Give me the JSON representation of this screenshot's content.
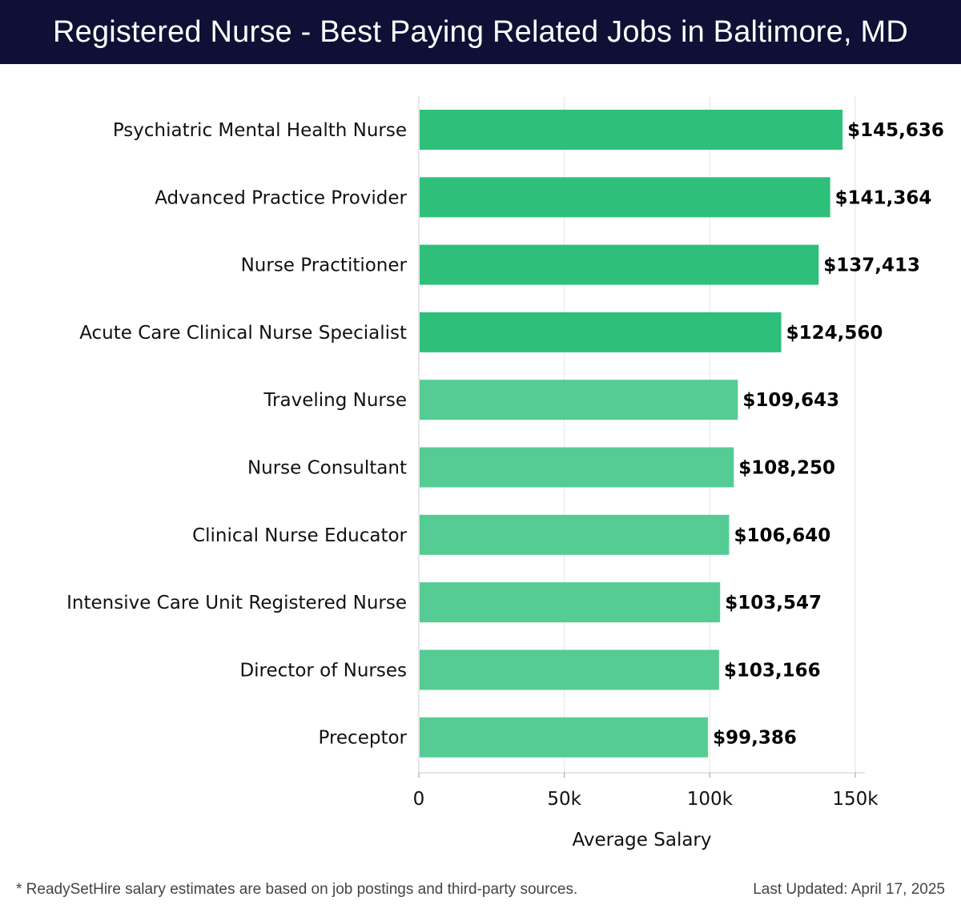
{
  "header": {
    "title": "Registered Nurse - Best Paying Related Jobs in Baltimore, MD"
  },
  "chart_data": {
    "type": "bar",
    "orientation": "horizontal",
    "title": "Registered Nurse - Best Paying Related Jobs in Baltimore, MD",
    "xlabel": "Average Salary",
    "ylabel": "",
    "xlim": [
      0,
      150000
    ],
    "xticks": [
      0,
      50000,
      100000,
      150000
    ],
    "xtick_labels": [
      "0",
      "50k",
      "100k",
      "150k"
    ],
    "grid": true,
    "categories": [
      "Psychiatric Mental Health Nurse",
      "Advanced Practice Provider",
      "Nurse Practitioner",
      "Acute Care Clinical Nurse Specialist",
      "Traveling Nurse",
      "Nurse Consultant",
      "Clinical Nurse Educator",
      "Intensive Care Unit Registered Nurse",
      "Director of Nurses",
      "Preceptor"
    ],
    "values": [
      145636,
      141364,
      137413,
      124560,
      109643,
      108250,
      106640,
      103547,
      103166,
      99386
    ],
    "value_labels": [
      "$145,636",
      "$141,364",
      "$137,413",
      "$124,560",
      "$109,643",
      "$108,250",
      "$106,640",
      "$103,547",
      "$103,166",
      "$99,386"
    ],
    "colors": {
      "top_bars": "#2ec07a",
      "other_bars": "#55cc93",
      "grid": "#e3e3e3",
      "axis": "#cccccc"
    }
  },
  "footer": {
    "note": "* ReadySetHire salary estimates are based on job postings and third-party sources.",
    "updated": "Last Updated: April 17, 2025"
  }
}
